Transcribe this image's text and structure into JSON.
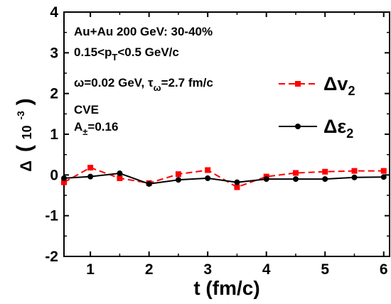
{
  "chart_data": {
    "type": "line",
    "xlabel": "t (fm/c)",
    "ylabel": "Δ (10⁻³)",
    "ylabel_parts": {
      "symbol": "Δ",
      "open": "(",
      "base": "10",
      "exp": "-3",
      "close": ")"
    },
    "xlim": [
      0.55,
      6.1
    ],
    "ylim": [
      -2,
      4
    ],
    "x_ticks": [
      1,
      2,
      3,
      4,
      5,
      6
    ],
    "y_ticks": [
      -2,
      -1,
      0,
      1,
      2,
      3,
      4
    ],
    "grid": false,
    "legend_position": "right",
    "annotations": [
      {
        "text": "Au+Au 200 GeV: 30-40%"
      },
      {
        "prefix": "0.15<p",
        "sub": "T",
        "suffix": "<0.5 GeV/c"
      },
      {
        "prefix": "ω=0.02 GeV, τ",
        "sub": "ω",
        "suffix": "=2.7 fm/c"
      },
      {
        "prefix": "CVE",
        "sub": "",
        "suffix": ""
      },
      {
        "prefix": "A",
        "sub": "±",
        "suffix": "=0.16"
      }
    ],
    "series": [
      {
        "name": "Δv2",
        "label_main": "Δv",
        "label_sub": "2",
        "color": "#ff0000",
        "line_style": "dashed",
        "marker": "square",
        "x": [
          0.55,
          1.0,
          1.5,
          2.0,
          2.5,
          3.0,
          3.5,
          4.0,
          4.5,
          5.0,
          5.5,
          6.0
        ],
        "values": [
          -0.18,
          0.18,
          -0.08,
          -0.2,
          0.02,
          0.12,
          -0.3,
          -0.04,
          0.05,
          0.08,
          0.1,
          0.1
        ]
      },
      {
        "name": "Δε2",
        "label_main": "Δε",
        "label_sub": "2",
        "color": "#000000",
        "line_style": "solid",
        "marker": "circle",
        "x": [
          0.55,
          1.0,
          1.5,
          2.0,
          2.5,
          3.0,
          3.5,
          4.0,
          4.5,
          5.0,
          5.5,
          6.0
        ],
        "values": [
          -0.08,
          -0.04,
          0.04,
          -0.22,
          -0.12,
          -0.08,
          -0.18,
          -0.1,
          -0.1,
          -0.1,
          -0.06,
          -0.05
        ]
      }
    ]
  }
}
